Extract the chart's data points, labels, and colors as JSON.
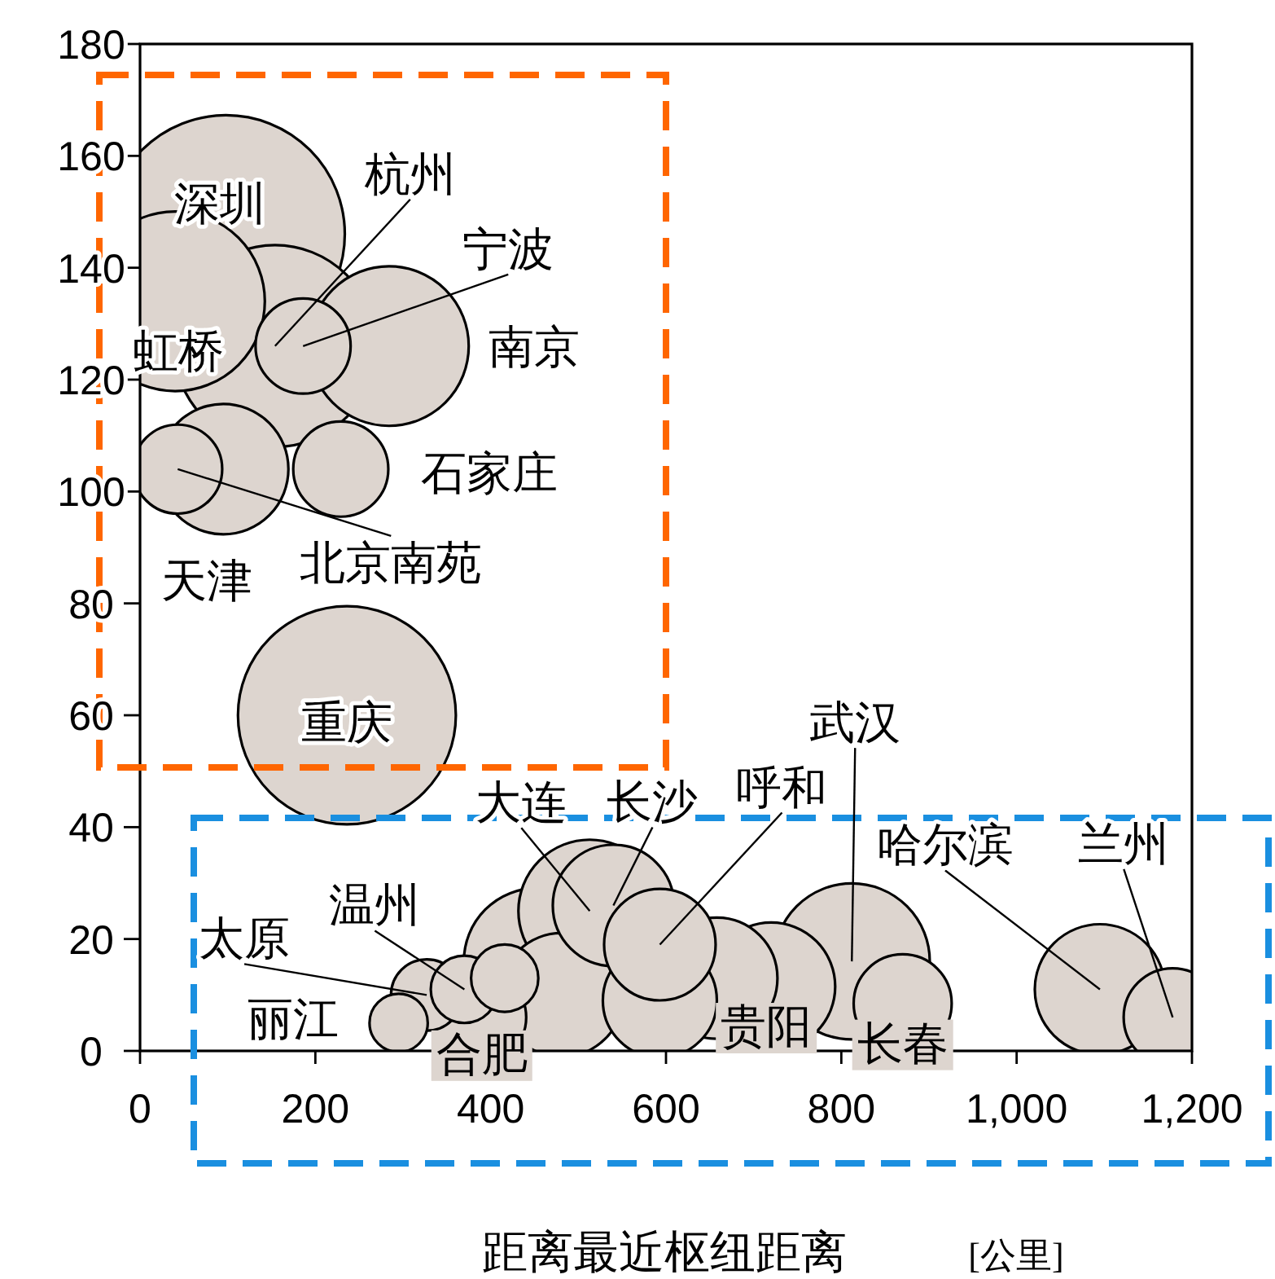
{
  "chart_data": {
    "type": "bubble",
    "xlabel": "距离最近枢纽距离",
    "x": [
      40,
      98,
      154,
      284,
      186,
      95,
      43,
      229,
      236,
      513,
      540,
      593,
      812,
      453,
      658,
      295,
      327,
      370,
      416,
      388,
      481,
      593,
      720,
      870,
      1095,
      1178
    ],
    "values": [
      134,
      146,
      126,
      126,
      126,
      104,
      104,
      104,
      60,
      25,
      26,
      19,
      16,
      16,
      13,
      5,
      10,
      11,
      13,
      6,
      10,
      9,
      11.5,
      8.5,
      11,
      6
    ],
    "sizes": [
      0.57,
      1,
      0.72,
      0.45,
      0.16,
      0.3,
      0.14,
      0.16,
      0.84,
      0.36,
      0.26,
      0.22,
      0.43,
      0.38,
      0.26,
      0.06,
      0.09,
      0.08,
      0.08,
      0.15,
      0.27,
      0.23,
      0.29,
      0.17,
      0.3,
      0.17
    ],
    "color": "#ddd5cf",
    "xlim": [
      0,
      1200
    ],
    "ylim": [
      0,
      180
    ],
    "xticks": [
      0,
      200,
      400,
      600,
      800,
      {
        "value": 1000,
        "label": "1,000"
      },
      {
        "value": 1200,
        "label": "1,200"
      }
    ],
    "yticks": [
      0,
      20,
      40,
      60,
      80,
      100,
      120,
      140,
      160,
      180
    ],
    "annotations": [
      {
        "text": "虹桥",
        "x": 40,
        "y": 134
      },
      {
        "text": "深圳",
        "x": 98,
        "y": 146
      },
      {
        "text": "杭州",
        "x": 154,
        "y": 126
      },
      {
        "text": "南京",
        "x": 284,
        "y": 126
      },
      {
        "text": "宁波",
        "x": 186,
        "y": 126
      },
      {
        "text": "天津",
        "x": 95,
        "y": 104
      },
      {
        "text": "北京南苑",
        "x": 43,
        "y": 104
      },
      {
        "text": "石家庄",
        "x": 229,
        "y": 104
      },
      {
        "text": "重庆",
        "x": 236,
        "y": 60
      },
      {
        "text": "大连",
        "x": 513,
        "y": 25
      },
      {
        "text": "长沙",
        "x": 540,
        "y": 26
      },
      {
        "text": "呼和",
        "x": 593,
        "y": 19
      },
      {
        "text": "武汉",
        "x": 812,
        "y": 16
      },
      {
        "text": "丽江",
        "x": 295,
        "y": 5
      },
      {
        "text": "太原",
        "x": 327,
        "y": 10
      },
      {
        "text": "温州",
        "x": 370,
        "y": 11
      },
      {
        "text": "合肥",
        "x": 388,
        "y": 6
      },
      {
        "text": "贵阳",
        "x": 720,
        "y": 11.5
      },
      {
        "text": "长春",
        "x": 870,
        "y": 8.5
      },
      {
        "text": "哈尔滨",
        "x": 1095,
        "y": 11
      },
      {
        "text": "兰州",
        "x": 1178,
        "y": 6
      },
      "[公里]"
    ]
  }
}
